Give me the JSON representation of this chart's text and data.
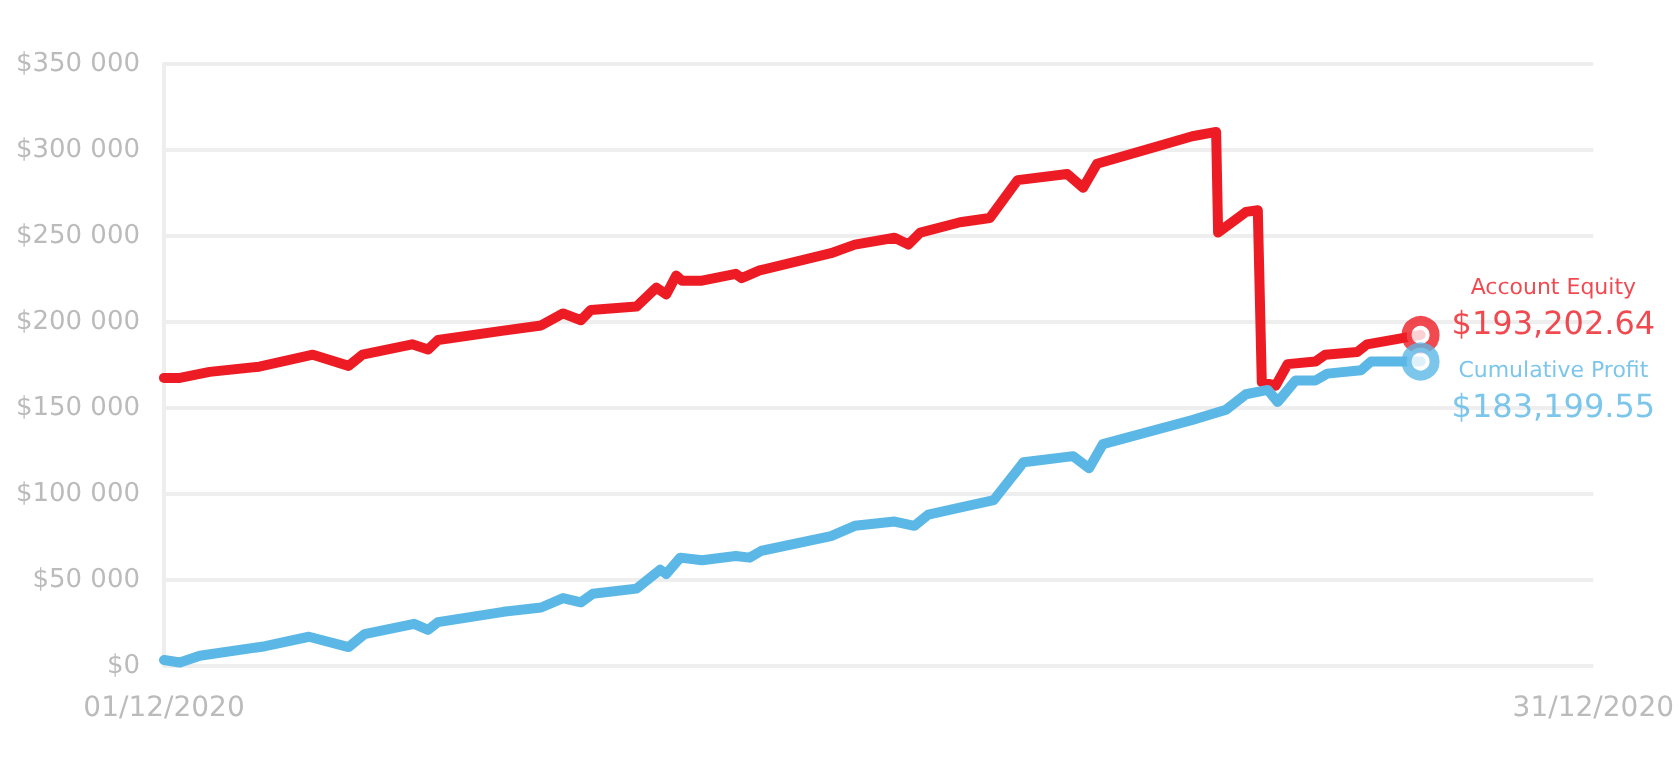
{
  "chart_data": {
    "type": "line",
    "xlim": [
      "2020-12-01T00:00",
      "2020-12-31T00:00"
    ],
    "xticks": [
      {
        "value": "2020-12-01T00:00",
        "label": "01/12/2020"
      },
      {
        "value": "2020-12-31T00:00",
        "label": "31/12/2020"
      }
    ],
    "ylim": [
      0,
      350000
    ],
    "yticks": [
      {
        "value": 0,
        "label": "$0"
      },
      {
        "value": 50000,
        "label": "$50 000"
      },
      {
        "value": 100000,
        "label": "$100 000"
      },
      {
        "value": 150000,
        "label": "$150 000"
      },
      {
        "value": 200000,
        "label": "$200 000"
      },
      {
        "value": 250000,
        "label": "$250 000"
      },
      {
        "value": 300000,
        "label": "$300 000"
      },
      {
        "value": 350000,
        "label": "$350 000"
      }
    ],
    "grid": "y",
    "legend": false,
    "marker": "none",
    "line_style": "solid",
    "series": [
      {
        "name": "Account Equity",
        "color": "#ed1c24",
        "x": [
          "2020-12-01T00:00",
          "2020-12-01T08:00",
          "2020-12-01T23:00",
          "2020-12-03T00:00",
          "2020-12-04T03:00",
          "2020-12-04T21:00",
          "2020-12-05T04:00",
          "2020-12-06T05:00",
          "2020-12-06T13:00",
          "2020-12-06T18:00",
          "2020-12-08T03:00",
          "2020-12-08T22:00",
          "2020-12-09T09:00",
          "2020-12-09T18:00",
          "2020-12-09T23:00",
          "2020-12-10T22:00",
          "2020-12-11T08:00",
          "2020-12-11T13:00",
          "2020-12-11T18:00",
          "2020-12-11T21:00",
          "2020-12-12T07:00",
          "2020-12-13T00:00",
          "2020-12-13T03:00",
          "2020-12-13T12:00",
          "2020-12-15T00:00",
          "2020-12-15T12:00",
          "2020-12-16T08:00",
          "2020-12-16T15:00",
          "2020-12-16T21:00",
          "2020-12-17T17:00",
          "2020-12-18T08:00",
          "2020-12-18T22:00",
          "2020-12-19T23:00",
          "2020-12-20T07:00",
          "2020-12-20T14:00",
          "2020-12-21T11:00",
          "2020-12-22T14:00",
          "2020-12-23T02:00",
          "2020-12-23T03:00",
          "2020-12-23T17:00",
          "2020-12-23T23:00",
          "2020-12-24T01:00",
          "2020-12-24T08:00",
          "2020-12-24T14:00",
          "2020-12-25T04:00",
          "2020-12-25T09:00",
          "2020-12-26T01:00",
          "2020-12-26T06:00",
          "2020-12-27T09:00"
        ],
        "values": [
          167500,
          167500,
          171000,
          174000,
          181000,
          174500,
          181000,
          187000,
          184000,
          189500,
          195000,
          198000,
          205000,
          201000,
          207000,
          209000,
          220000,
          216000,
          227000,
          224000,
          224000,
          228000,
          225500,
          230000,
          240000,
          245000,
          249000,
          245000,
          252000,
          258000,
          260500,
          282500,
          286000,
          278000,
          292000,
          299000,
          308000,
          310500,
          252000,
          264000,
          265000,
          165000,
          163000,
          175500,
          177000,
          181000,
          182500,
          187000,
          192500
        ]
      },
      {
        "name": "Cumulative Profit",
        "color": "#5bb8e6",
        "x": [
          "2020-12-01T00:00",
          "2020-12-01T08:00",
          "2020-12-01T18:00",
          "2020-12-03T03:00",
          "2020-12-04T01:00",
          "2020-12-04T21:00",
          "2020-12-05T05:00",
          "2020-12-06T06:00",
          "2020-12-06T13:00",
          "2020-12-06T18:00",
          "2020-12-08T03:00",
          "2020-12-08T22:00",
          "2020-12-09T09:00",
          "2020-12-09T18:00",
          "2020-12-10T00:00",
          "2020-12-10T22:00",
          "2020-12-11T10:00",
          "2020-12-11T13:00",
          "2020-12-11T20:00",
          "2020-12-12T07:00",
          "2020-12-13T00:00",
          "2020-12-13T07:00",
          "2020-12-13T13:00",
          "2020-12-15T00:00",
          "2020-12-15T12:00",
          "2020-12-16T08:00",
          "2020-12-16T18:00",
          "2020-12-17T01:00",
          "2020-12-18T10:00",
          "2020-12-19T01:00",
          "2020-12-20T02:00",
          "2020-12-20T10:00",
          "2020-12-20T17:00",
          "2020-12-22T14:00",
          "2020-12-23T07:00",
          "2020-12-23T17:00",
          "2020-12-24T04:00",
          "2020-12-24T09:00",
          "2020-12-24T18:00",
          "2020-12-25T04:00",
          "2020-12-25T10:00",
          "2020-12-26T03:00",
          "2020-12-26T08:00",
          "2020-12-27T09:00"
        ],
        "values": [
          3500,
          2000,
          6000,
          11500,
          17000,
          11000,
          18500,
          24500,
          21000,
          25500,
          31500,
          34000,
          39500,
          37000,
          42000,
          45000,
          56000,
          53500,
          63000,
          61500,
          64000,
          63000,
          67000,
          75500,
          81500,
          84000,
          81500,
          88000,
          96500,
          118500,
          122000,
          115000,
          129000,
          143000,
          149000,
          158000,
          160500,
          153500,
          166000,
          166000,
          170000,
          172000,
          177000,
          177000
        ]
      }
    ],
    "annotations": [
      {
        "text": "$193,202.64",
        "x": "2020-12-27T09:00",
        "y": 192500
      },
      {
        "text": "$183,199.55",
        "x": "2020-12-27T09:00",
        "y": 177000
      }
    ]
  }
}
